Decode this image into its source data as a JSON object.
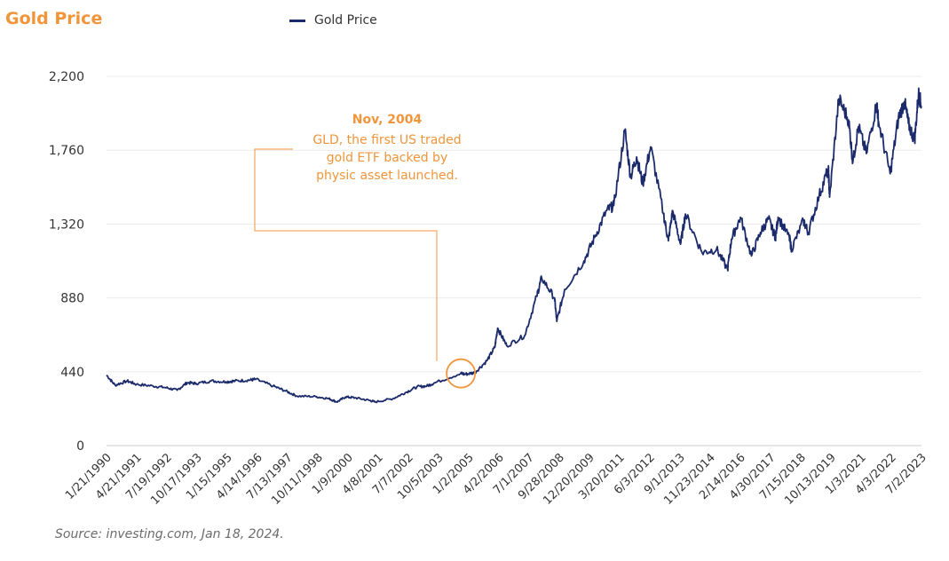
{
  "chart_data": {
    "type": "line",
    "title": "Gold Price",
    "legend": {
      "entries": [
        "Gold Price"
      ],
      "placement": "top"
    },
    "series": [
      {
        "name": "Gold Price",
        "color": "#1b2a6b",
        "points": [
          [
            "1/21/1990",
            420
          ],
          [
            "6/1/1990",
            360
          ],
          [
            "12/1/1990",
            385
          ],
          [
            "4/21/1991",
            365
          ],
          [
            "1/1/1992",
            355
          ],
          [
            "7/19/1992",
            345
          ],
          [
            "1/1/1993",
            330
          ],
          [
            "6/1/1993",
            375
          ],
          [
            "10/17/1993",
            370
          ],
          [
            "6/1/1994",
            385
          ],
          [
            "1/15/1995",
            380
          ],
          [
            "6/1/1995",
            385
          ],
          [
            "1/1/1996",
            390
          ],
          [
            "4/14/1996",
            395
          ],
          [
            "1/1/1997",
            355
          ],
          [
            "7/13/1997",
            325
          ],
          [
            "1/1/1998",
            295
          ],
          [
            "10/11/1998",
            292
          ],
          [
            "5/1/1999",
            280
          ],
          [
            "9/1/1999",
            260
          ],
          [
            "1/9/2000",
            290
          ],
          [
            "6/1/2000",
            285
          ],
          [
            "1/1/2001",
            270
          ],
          [
            "4/8/2001",
            260
          ],
          [
            "1/1/2002",
            280
          ],
          [
            "7/7/2002",
            315
          ],
          [
            "1/1/2003",
            350
          ],
          [
            "6/1/2003",
            355
          ],
          [
            "10/5/2003",
            375
          ],
          [
            "11/1/2004",
            430
          ],
          [
            "1/2/2005",
            425
          ],
          [
            "6/1/2005",
            435
          ],
          [
            "12/1/2005",
            505
          ],
          [
            "4/2/2006",
            585
          ],
          [
            "5/15/2006",
            700
          ],
          [
            "10/1/2006",
            595
          ],
          [
            "7/1/2007",
            655
          ],
          [
            "1/1/2008",
            890
          ],
          [
            "3/15/2008",
            1000
          ],
          [
            "9/28/2008",
            880
          ],
          [
            "11/1/2008",
            740
          ],
          [
            "3/1/2009",
            930
          ],
          [
            "12/20/2009",
            1100
          ],
          [
            "6/1/2010",
            1240
          ],
          [
            "12/1/2010",
            1400
          ],
          [
            "3/20/2011",
            1430
          ],
          [
            "9/5/2011",
            1880
          ],
          [
            "12/1/2011",
            1600
          ],
          [
            "3/1/2012",
            1720
          ],
          [
            "6/3/2012",
            1560
          ],
          [
            "10/1/2012",
            1780
          ],
          [
            "4/15/2013",
            1380
          ],
          [
            "6/28/2013",
            1220
          ],
          [
            "9/1/2013",
            1400
          ],
          [
            "12/31/2013",
            1200
          ],
          [
            "3/15/2014",
            1380
          ],
          [
            "11/23/2014",
            1150
          ],
          [
            "7/1/2015",
            1170
          ],
          [
            "12/17/2015",
            1050
          ],
          [
            "2/14/2016",
            1230
          ],
          [
            "7/1/2016",
            1360
          ],
          [
            "12/15/2016",
            1130
          ],
          [
            "4/30/2017",
            1270
          ],
          [
            "9/1/2017",
            1350
          ],
          [
            "12/15/2017",
            1240
          ],
          [
            "1/25/2018",
            1360
          ],
          [
            "7/15/2018",
            1240
          ],
          [
            "8/16/2018",
            1170
          ],
          [
            "2/15/2019",
            1340
          ],
          [
            "5/1/2019",
            1270
          ],
          [
            "10/13/2019",
            1490
          ],
          [
            "3/1/2020",
            1650
          ],
          [
            "3/19/2020",
            1480
          ],
          [
            "8/6/2020",
            2065
          ],
          [
            "1/3/2021",
            1940
          ],
          [
            "3/8/2021",
            1690
          ],
          [
            "6/1/2021",
            1900
          ],
          [
            "9/30/2021",
            1740
          ],
          [
            "3/8/2022",
            2040
          ],
          [
            "4/3/2022",
            1930
          ],
          [
            "9/28/2022",
            1620
          ],
          [
            "2/1/2023",
            1950
          ],
          [
            "5/4/2023",
            2050
          ],
          [
            "7/2/2023",
            1920
          ],
          [
            "10/5/2023",
            1820
          ],
          [
            "12/4/2023",
            2100
          ],
          [
            "1/18/2024",
            2025
          ]
        ]
      }
    ],
    "xlabel": "",
    "ylabel": "",
    "ylim": [
      0,
      2200
    ],
    "yticks": [
      "0",
      "440",
      "880",
      "1,320",
      "1,760",
      "2,200"
    ],
    "xticks": [
      "1/21/1990",
      "4/21/1991",
      "7/19/1992",
      "10/17/1993",
      "1/15/1995",
      "4/14/1996",
      "7/13/1997",
      "10/11/1998",
      "1/9/2000",
      "4/8/2001",
      "7/7/2002",
      "10/5/2003",
      "1/2/2005",
      "4/2/2006",
      "7/1/2007",
      "9/28/2008",
      "12/20/2009",
      "3/20/2011",
      "6/3/2012",
      "9/1/2013",
      "11/23/2014",
      "2/14/2016",
      "4/30/2017",
      "7/15/2018",
      "10/13/2019",
      "1/3/2021",
      "4/3/2022",
      "7/2/2023"
    ],
    "xlim": [
      "1/21/1990",
      "1/18/2024"
    ],
    "grid": "horizontal",
    "annotation": {
      "date": "11/1/2004",
      "value": 430,
      "title": "Nov, 2004",
      "lines": [
        "GLD, the first US traded",
        "gold ETF backed by",
        "physic asset launched."
      ],
      "color": "#f0953a"
    }
  },
  "source": "Source: investing.com, Jan 18, 2024."
}
